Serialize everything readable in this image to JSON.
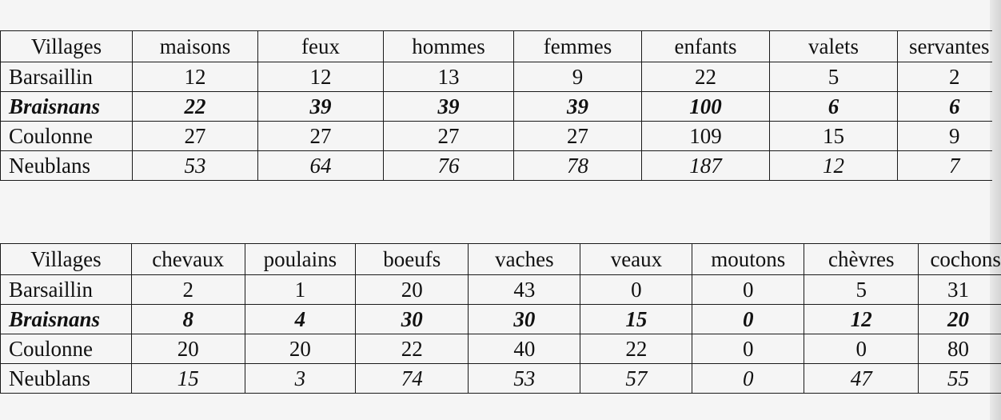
{
  "table1": {
    "headers": [
      "Villages",
      "maisons",
      "feux",
      "hommes",
      "femmes",
      "enfants",
      "valets",
      "servantes"
    ],
    "rows": [
      {
        "village": "Barsaillin",
        "values": [
          "12",
          "12",
          "13",
          "9",
          "22",
          "5",
          "2"
        ]
      },
      {
        "village": "Braisnans",
        "values": [
          "22",
          "39",
          "39",
          "39",
          "100",
          "6",
          "6"
        ]
      },
      {
        "village": "Coulonne",
        "values": [
          "27",
          "27",
          "27",
          "27",
          "109",
          "15",
          "9"
        ]
      },
      {
        "village": "Neublans",
        "values": [
          "53",
          "64",
          "76",
          "78",
          "187",
          "12",
          "7"
        ]
      }
    ]
  },
  "table2": {
    "headers": [
      "Villages",
      "chevaux",
      "poulains",
      "boeufs",
      "vaches",
      "veaux",
      "moutons",
      "chèvres",
      "cochons"
    ],
    "rows": [
      {
        "village": "Barsaillin",
        "values": [
          "2",
          "1",
          "20",
          "43",
          "0",
          "0",
          "5",
          "31"
        ]
      },
      {
        "village": "Braisnans",
        "values": [
          "8",
          "4",
          "30",
          "30",
          "15",
          "0",
          "12",
          "20"
        ]
      },
      {
        "village": "Coulonne",
        "values": [
          "20",
          "20",
          "22",
          "40",
          "22",
          "0",
          "0",
          "80"
        ]
      },
      {
        "village": "Neublans",
        "values": [
          "15",
          "3",
          "74",
          "53",
          "57",
          "0",
          "47",
          "55"
        ]
      }
    ]
  }
}
